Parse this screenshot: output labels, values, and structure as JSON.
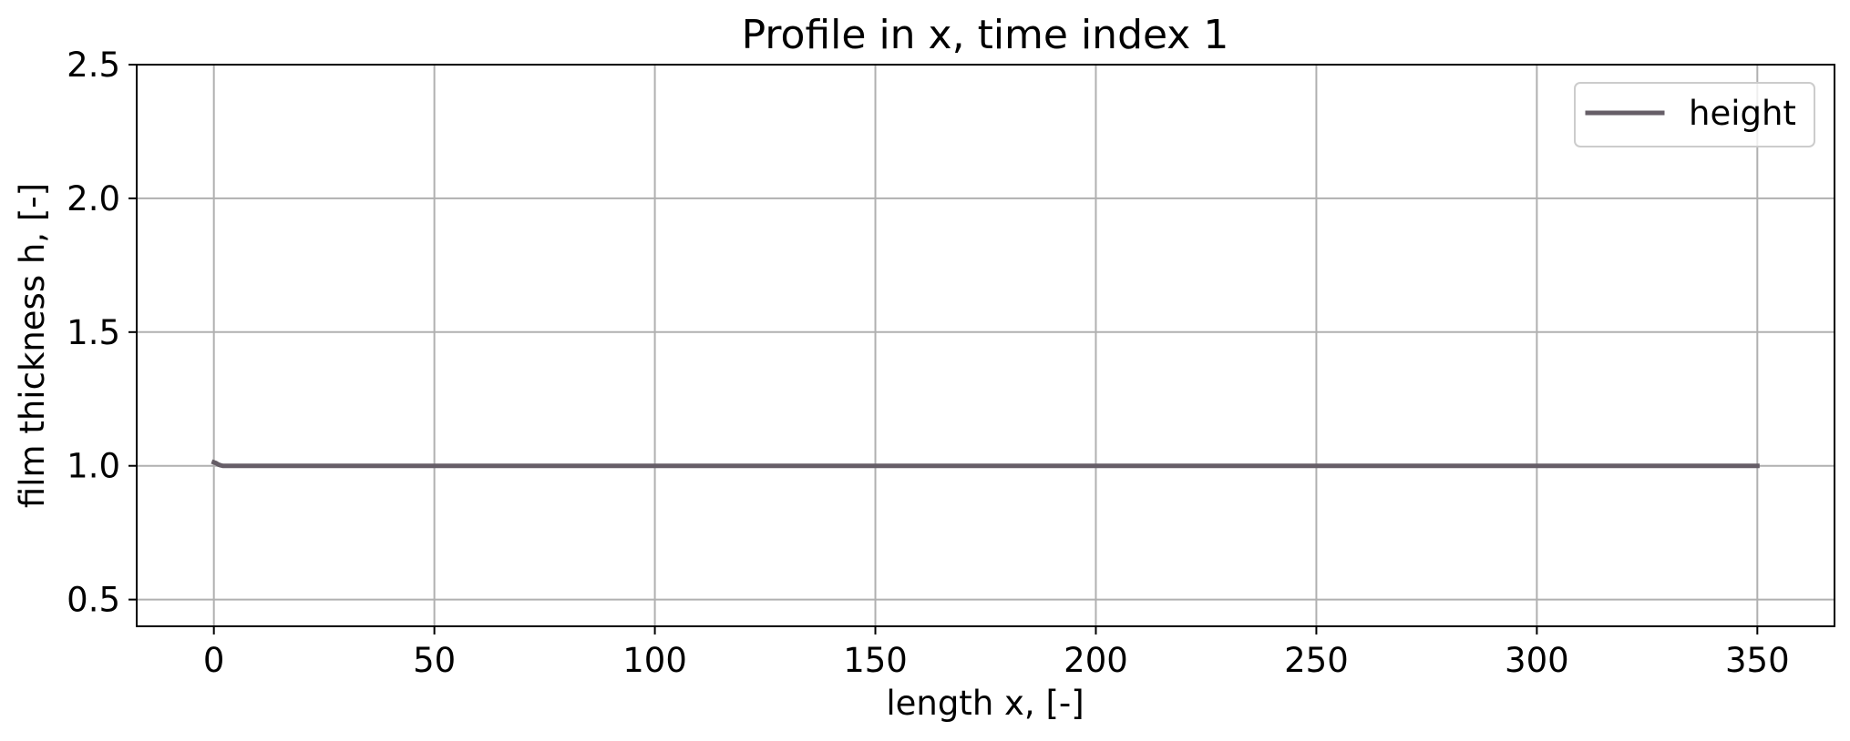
{
  "chart_data": {
    "type": "line",
    "title": "Profile in x, time index 1",
    "xlabel": "length x, [-]",
    "ylabel": "film thickness h, [-]",
    "xlim": [
      -17.5,
      367.5
    ],
    "ylim": [
      0.4,
      2.5
    ],
    "xticks": [
      0,
      50,
      100,
      150,
      200,
      250,
      300,
      350
    ],
    "xtick_labels": [
      "0",
      "50",
      "100",
      "150",
      "200",
      "250",
      "300",
      "350"
    ],
    "yticks": [
      0.5,
      1.0,
      1.5,
      2.0,
      2.5
    ],
    "ytick_labels": [
      "0.5",
      "1.0",
      "1.5",
      "2.0",
      "2.5"
    ],
    "grid": true,
    "legend_position": "top-right",
    "series": [
      {
        "name": "height",
        "color": "#665e67",
        "x": [
          0,
          0.5,
          1,
          1.5,
          2,
          3,
          5,
          10,
          50,
          100,
          150,
          200,
          250,
          300,
          350
        ],
        "y": [
          1.013,
          1.01,
          1.005,
          1.002,
          1.0,
          1.0,
          1.0,
          1.0,
          1.0,
          1.0,
          1.0,
          1.0,
          1.0,
          1.0,
          1.0
        ]
      }
    ]
  }
}
